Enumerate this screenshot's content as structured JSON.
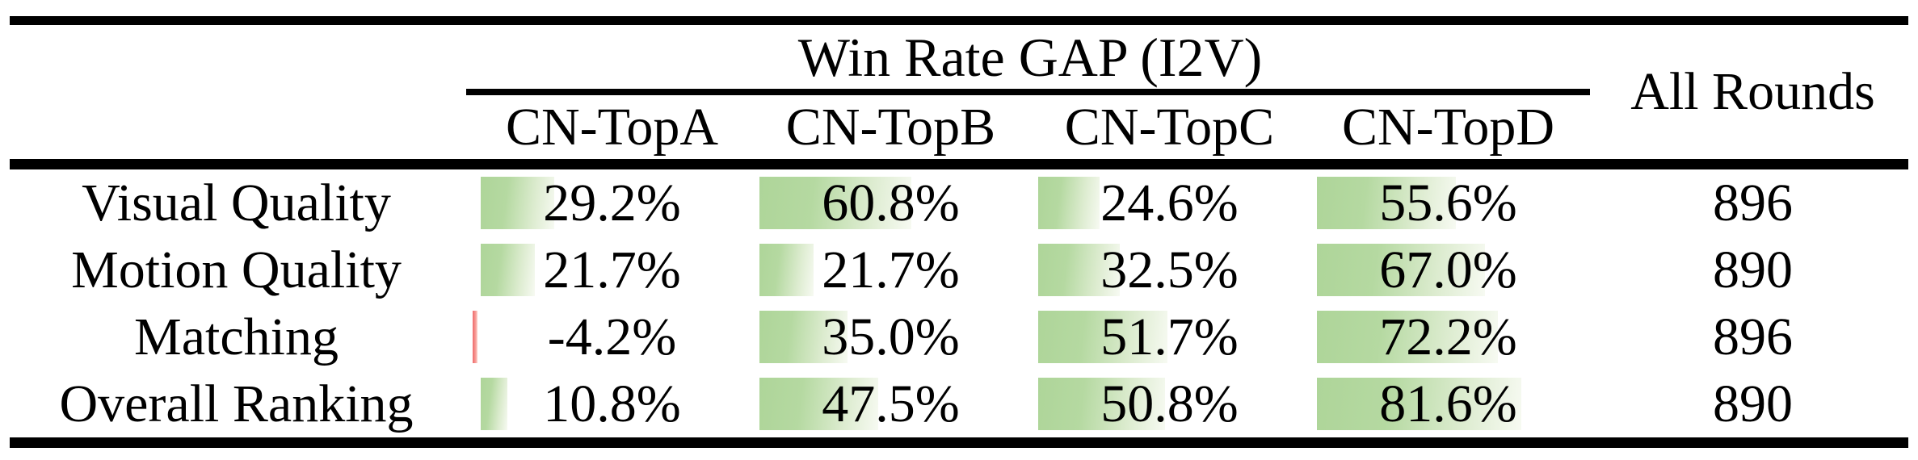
{
  "table": {
    "group_header": "Win Rate GAP (I2V)",
    "all_rounds_header": "All Rounds",
    "columns": [
      "CN-TopA",
      "CN-TopB",
      "CN-TopC",
      "CN-TopD"
    ],
    "rows": [
      {
        "label": "Visual Quality",
        "cells": [
          {
            "value": 29.2,
            "text": "29.2%"
          },
          {
            "value": 60.8,
            "text": "60.8%"
          },
          {
            "value": 24.6,
            "text": "24.6%"
          },
          {
            "value": 55.6,
            "text": "55.6%"
          }
        ],
        "all_rounds": "896"
      },
      {
        "label": "Motion Quality",
        "cells": [
          {
            "value": 21.7,
            "text": "21.7%"
          },
          {
            "value": 21.7,
            "text": "21.7%"
          },
          {
            "value": 32.5,
            "text": "32.5%"
          },
          {
            "value": 67.0,
            "text": "67.0%"
          }
        ],
        "all_rounds": "890"
      },
      {
        "label": "Matching",
        "cells": [
          {
            "value": -4.2,
            "text": "-4.2%"
          },
          {
            "value": 35.0,
            "text": "35.0%"
          },
          {
            "value": 51.7,
            "text": "51.7%"
          },
          {
            "value": 72.2,
            "text": "72.2%"
          }
        ],
        "all_rounds": "896"
      },
      {
        "label": "Overall Ranking",
        "cells": [
          {
            "value": 10.8,
            "text": "10.8%"
          },
          {
            "value": 47.5,
            "text": "47.5%"
          },
          {
            "value": 50.8,
            "text": "50.8%"
          },
          {
            "value": 81.6,
            "text": "81.6%"
          }
        ],
        "all_rounds": "890"
      }
    ],
    "colors": {
      "bar_positive": "#aed599",
      "bar_positive_fade": "#f7faf2",
      "bar_negative": "#ee6a6b",
      "rule": "#000000",
      "text": "#000000",
      "background": "#ffffff"
    }
  },
  "chart_data": {
    "type": "table",
    "title": "Win Rate GAP (I2V)",
    "columns": [
      "CN-TopA",
      "CN-TopB",
      "CN-TopC",
      "CN-TopD",
      "All Rounds"
    ],
    "row_labels": [
      "Visual Quality",
      "Motion Quality",
      "Matching",
      "Overall Ranking"
    ],
    "series": [
      {
        "name": "CN-TopA",
        "values": [
          29.2,
          21.7,
          -4.2,
          10.8
        ]
      },
      {
        "name": "CN-TopB",
        "values": [
          60.8,
          21.7,
          35.0,
          47.5
        ]
      },
      {
        "name": "CN-TopC",
        "values": [
          24.6,
          32.5,
          51.7,
          50.8
        ]
      },
      {
        "name": "CN-TopD",
        "values": [
          55.6,
          67.0,
          72.2,
          81.6
        ]
      }
    ],
    "all_rounds": [
      896,
      890,
      896,
      890
    ],
    "units": "percent",
    "cell_visualization": "gradient data bars, green positive, red negative",
    "bar_scale": [
      0,
      100
    ]
  }
}
